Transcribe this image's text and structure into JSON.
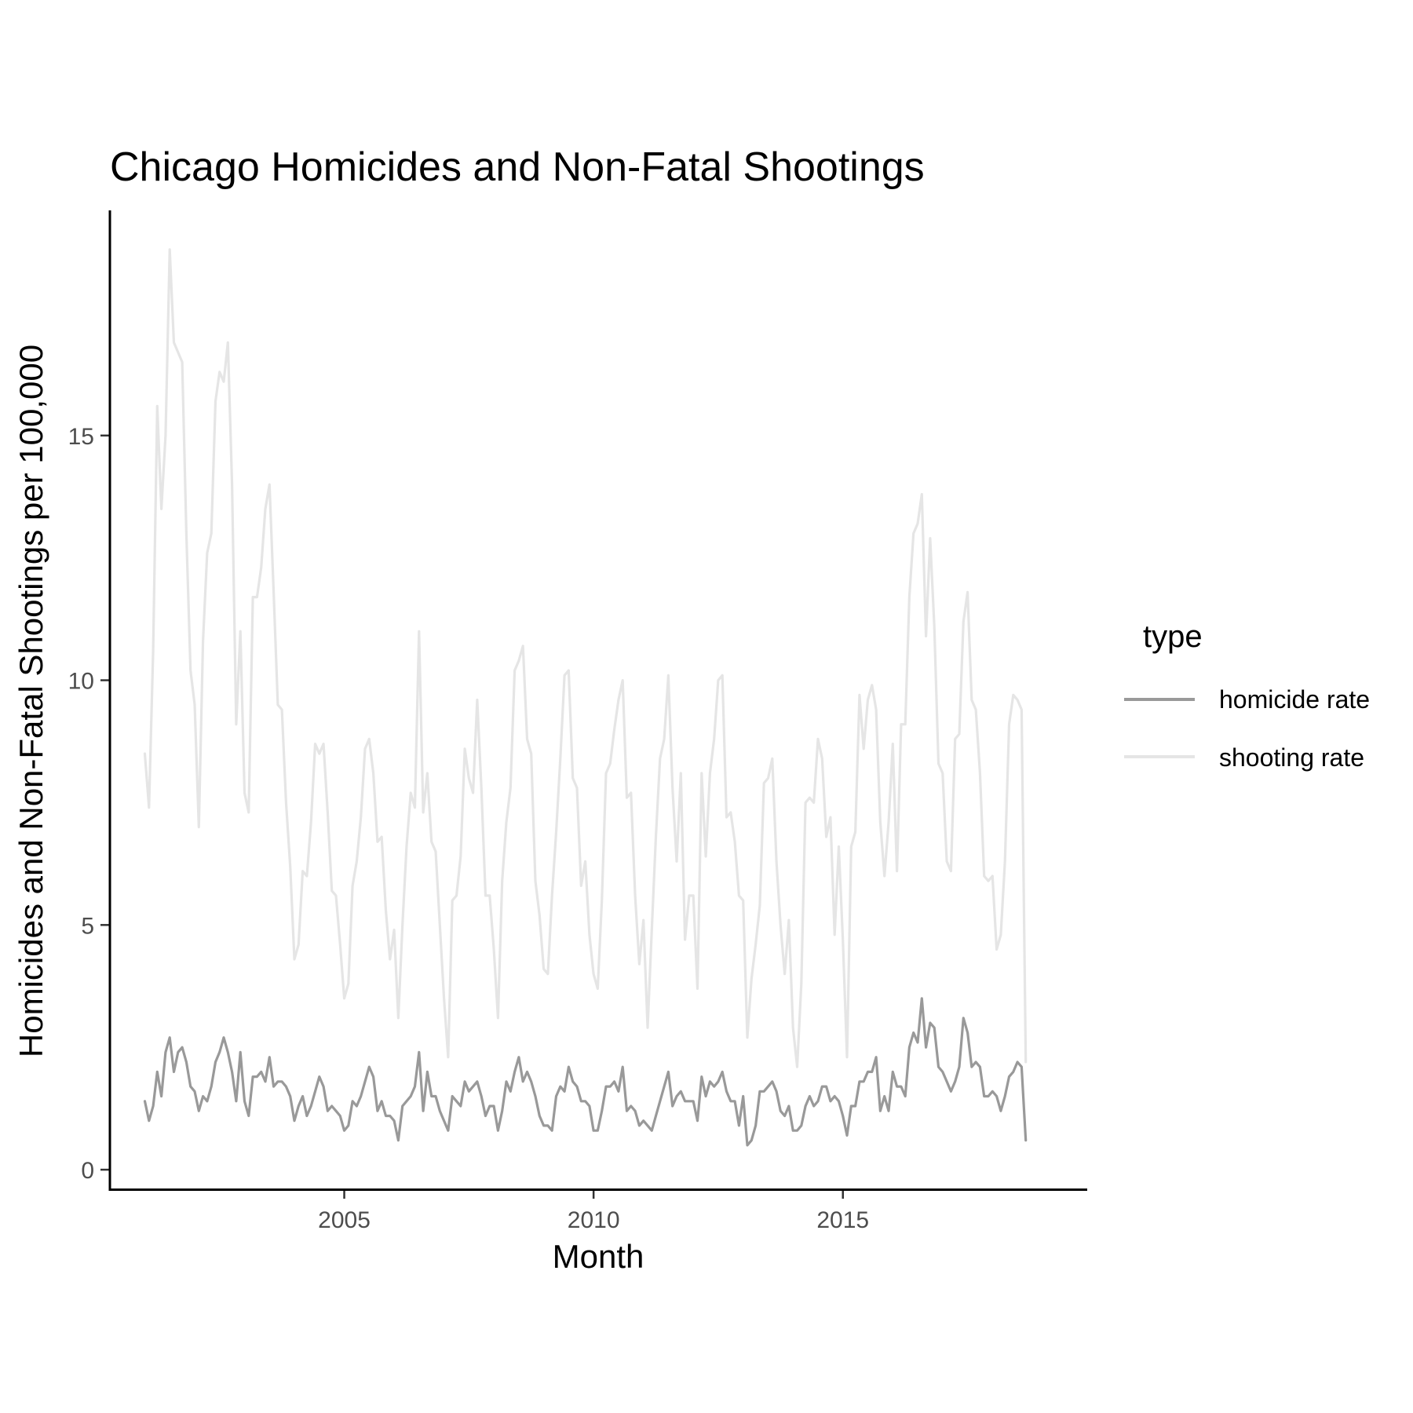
{
  "chart_data": {
    "type": "line",
    "title": "Chicago Homicides and Non-Fatal Shootings",
    "xlabel": "Month",
    "ylabel": "Homicides and Non-Fatal Shootings per 100,000",
    "x_start": "2001-01",
    "x_step": "1 month",
    "xlim": [
      2000.3,
      2019.9
    ],
    "ylim": [
      -0.4,
      19.6
    ],
    "xticks": [
      2005,
      2010,
      2015
    ],
    "yticks": [
      0,
      5,
      10,
      15
    ],
    "grid": false,
    "legend": {
      "title": "type",
      "position": "right"
    },
    "series": [
      {
        "name": "homicide rate",
        "color": "#999999",
        "values": [
          1.4,
          1.0,
          1.3,
          2.0,
          1.5,
          2.4,
          2.7,
          2.0,
          2.4,
          2.5,
          2.2,
          1.7,
          1.6,
          1.2,
          1.5,
          1.4,
          1.7,
          2.2,
          2.4,
          2.7,
          2.4,
          2.0,
          1.4,
          2.4,
          1.4,
          1.1,
          1.9,
          1.9,
          2.0,
          1.8,
          2.3,
          1.7,
          1.8,
          1.8,
          1.7,
          1.5,
          1.0,
          1.3,
          1.5,
          1.1,
          1.3,
          1.6,
          1.9,
          1.7,
          1.2,
          1.3,
          1.2,
          1.1,
          0.8,
          0.9,
          1.4,
          1.3,
          1.5,
          1.8,
          2.1,
          1.9,
          1.2,
          1.4,
          1.1,
          1.1,
          1.0,
          0.6,
          1.3,
          1.4,
          1.5,
          1.7,
          2.4,
          1.2,
          2.0,
          1.5,
          1.5,
          1.2,
          1.0,
          0.8,
          1.5,
          1.4,
          1.3,
          1.8,
          1.6,
          1.7,
          1.8,
          1.5,
          1.1,
          1.3,
          1.3,
          0.8,
          1.2,
          1.8,
          1.6,
          2.0,
          2.3,
          1.8,
          2.0,
          1.8,
          1.5,
          1.1,
          0.9,
          0.9,
          0.8,
          1.5,
          1.7,
          1.6,
          2.1,
          1.8,
          1.7,
          1.4,
          1.4,
          1.3,
          0.8,
          0.8,
          1.2,
          1.7,
          1.7,
          1.8,
          1.6,
          2.1,
          1.2,
          1.3,
          1.2,
          0.9,
          1.0,
          0.9,
          0.8,
          1.1,
          1.4,
          1.7,
          2.0,
          1.3,
          1.5,
          1.6,
          1.4,
          1.4,
          1.4,
          1.0,
          1.9,
          1.5,
          1.8,
          1.7,
          1.8,
          2.0,
          1.6,
          1.4,
          1.4,
          0.9,
          1.5,
          0.5,
          0.6,
          0.9,
          1.6,
          1.6,
          1.7,
          1.8,
          1.6,
          1.2,
          1.1,
          1.3,
          0.8,
          0.8,
          0.9,
          1.3,
          1.5,
          1.3,
          1.4,
          1.7,
          1.7,
          1.4,
          1.5,
          1.4,
          1.1,
          0.7,
          1.3,
          1.3,
          1.8,
          1.8,
          2.0,
          2.0,
          2.3,
          1.2,
          1.5,
          1.2,
          2.0,
          1.7,
          1.7,
          1.5,
          2.5,
          2.8,
          2.6,
          3.5,
          2.5,
          3.0,
          2.9,
          2.1,
          2.0,
          1.8,
          1.6,
          1.8,
          2.1,
          3.1,
          2.8,
          2.1,
          2.2,
          2.1,
          1.5,
          1.5,
          1.6,
          1.5,
          1.2,
          1.5,
          1.9,
          2.0,
          2.2,
          2.1,
          0.6
        ]
      },
      {
        "name": "shooting rate",
        "color": "#e5e5e5",
        "values": [
          8.5,
          7.4,
          10.6,
          15.6,
          13.5,
          15.0,
          18.8,
          16.9,
          16.7,
          16.5,
          13.0,
          10.2,
          9.5,
          7.0,
          10.8,
          12.6,
          13.0,
          15.7,
          16.3,
          16.1,
          16.9,
          14.0,
          9.1,
          11.0,
          7.7,
          7.3,
          11.7,
          11.7,
          12.3,
          13.5,
          14.0,
          11.8,
          9.5,
          9.4,
          7.5,
          6.2,
          4.3,
          4.6,
          6.1,
          6.0,
          7.1,
          8.7,
          8.5,
          8.7,
          7.3,
          5.7,
          5.6,
          4.6,
          3.5,
          3.8,
          5.8,
          6.3,
          7.2,
          8.6,
          8.8,
          8.1,
          6.7,
          6.8,
          5.3,
          4.3,
          4.9,
          3.1,
          5.0,
          6.6,
          7.7,
          7.4,
          11.0,
          7.3,
          8.1,
          6.7,
          6.5,
          5.0,
          3.5,
          2.3,
          5.5,
          5.6,
          6.4,
          8.6,
          8.0,
          7.7,
          9.6,
          7.8,
          5.6,
          5.6,
          4.5,
          3.1,
          5.9,
          7.1,
          7.8,
          10.2,
          10.4,
          10.7,
          8.8,
          8.5,
          5.9,
          5.2,
          4.1,
          4.0,
          5.6,
          6.9,
          8.4,
          10.1,
          10.2,
          8.0,
          7.8,
          5.8,
          6.3,
          4.8,
          4.0,
          3.7,
          5.5,
          8.1,
          8.3,
          9.0,
          9.6,
          10.0,
          7.6,
          7.7,
          5.6,
          4.2,
          5.1,
          2.9,
          4.9,
          6.8,
          8.4,
          8.8,
          10.1,
          7.8,
          6.3,
          8.1,
          4.7,
          5.6,
          5.6,
          3.7,
          8.1,
          6.4,
          8.1,
          8.8,
          10.0,
          10.1,
          7.2,
          7.3,
          6.7,
          5.6,
          5.5,
          2.7,
          3.9,
          4.6,
          5.4,
          7.9,
          8.0,
          8.4,
          6.3,
          5.0,
          4.0,
          5.1,
          2.9,
          2.1,
          3.8,
          7.5,
          7.6,
          7.5,
          8.8,
          8.4,
          6.8,
          7.2,
          4.8,
          6.6,
          4.7,
          2.3,
          6.6,
          6.9,
          9.7,
          8.6,
          9.6,
          9.9,
          9.4,
          7.1,
          6.0,
          7.1,
          8.7,
          6.1,
          9.1,
          9.1,
          11.7,
          13.0,
          13.2,
          13.8,
          10.9,
          12.9,
          11.1,
          8.3,
          8.1,
          6.3,
          6.1,
          8.8,
          8.9,
          11.2,
          11.8,
          9.6,
          9.4,
          8.1,
          6.0,
          5.9,
          6.0,
          4.5,
          4.8,
          6.3,
          9.1,
          9.7,
          9.6,
          9.4,
          2.2
        ]
      }
    ]
  }
}
